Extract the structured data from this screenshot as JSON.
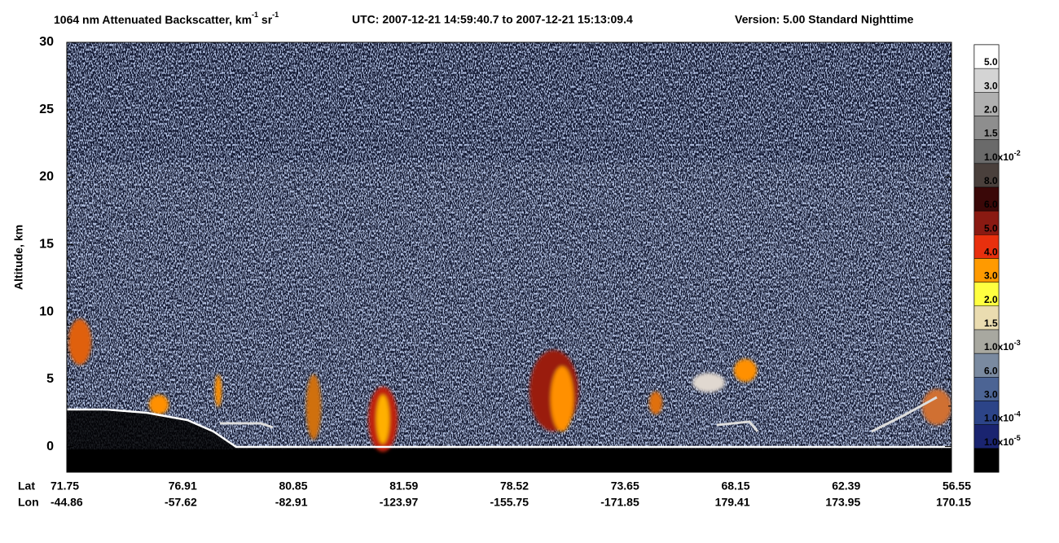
{
  "chart_data": {
    "type": "heatmap",
    "title_parts": [
      "1064 nm Attenuated Backscatter, km",
      "-1",
      " sr",
      "-1"
    ],
    "time_range": "UTC:  2007-12-21 14:59:40.7  to  2007-12-21 15:13:09.4",
    "version": "Version: 5.00  Standard  Nighttime",
    "ylabel": "Altitude, km",
    "ylim": [
      -1.9,
      30
    ],
    "yticks": [
      0,
      5,
      10,
      15,
      20,
      25,
      30
    ],
    "x_row_labels": [
      "Lat",
      "Lon"
    ],
    "lat": [
      "71.75",
      "76.91",
      "80.85",
      "81.59",
      "78.52",
      "73.65",
      "68.15",
      "62.39",
      "56.55"
    ],
    "lon": [
      "-44.86",
      "-57.62",
      "-82.91",
      "-123.97",
      "-155.75",
      "-171.85",
      "179.41",
      "173.95",
      "170.15"
    ],
    "colorbar": {
      "colors": [
        "#ffffff",
        "#d4d4d4",
        "#b0b0b0",
        "#8e8e8e",
        "#6a6a6a",
        "#4a403c",
        "#3a0808",
        "#8a1a12",
        "#e8300e",
        "#ff9a00",
        "#ffff40",
        "#eadcb0",
        "#a8a8a0",
        "#7a8aa0",
        "#4c6494",
        "#2c4488",
        "#1a2470",
        "#000000"
      ],
      "labels": [
        {
          "text": "5.0"
        },
        {
          "text": "3.0"
        },
        {
          "text": "2.0"
        },
        {
          "text": "1.5"
        },
        {
          "text": "1.0x10",
          "sup": "-2"
        },
        {
          "text": "8.0"
        },
        {
          "text": "6.0"
        },
        {
          "text": "5.0"
        },
        {
          "text": "4.0"
        },
        {
          "text": "3.0"
        },
        {
          "text": "2.0"
        },
        {
          "text": "1.5"
        },
        {
          "text": "1.0x10",
          "sup": "-3"
        },
        {
          "text": "6.0"
        },
        {
          "text": "3.0"
        },
        {
          "text": "1.0x10",
          "sup": "-4"
        },
        {
          "text": "1.0x10",
          "sup": "-5"
        }
      ]
    }
  }
}
